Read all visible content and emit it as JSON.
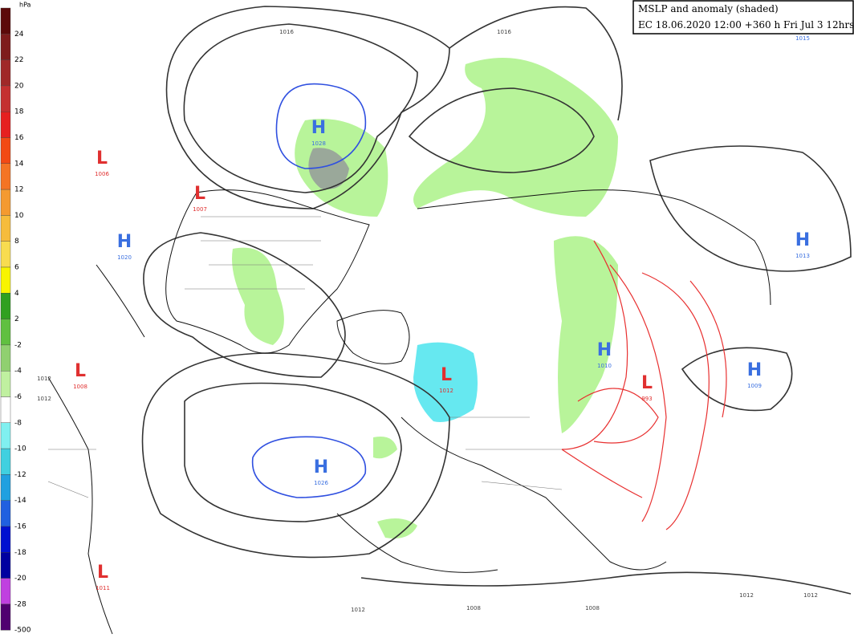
{
  "header": {
    "title": "MSLP and anomaly (shaded)",
    "run": "EC 18.06.2020 12:00 +360 h Fri Jul 3 12hrs"
  },
  "legend": {
    "unit": "hPa",
    "labels": [
      "24",
      "22",
      "20",
      "18",
      "16",
      "14",
      "12",
      "10",
      "8",
      "6",
      "4",
      "2",
      "-2",
      "-4",
      "-6",
      "-8",
      "-10",
      "-12",
      "-14",
      "-16",
      "-18",
      "-20",
      "-28",
      "-500"
    ],
    "colors": [
      "#5c0a0a",
      "#7e1c1c",
      "#a02828",
      "#c43030",
      "#e62020",
      "#f24a14",
      "#f47424",
      "#f49a30",
      "#f6bc3c",
      "#f8dc50",
      "#f8f400",
      "#30a020",
      "#60c040",
      "#90d070",
      "#c0f0a0",
      "#ffffff",
      "#80f0f0",
      "#40d0e0",
      "#20a0e0",
      "#2060e0",
      "#0010d0",
      "#0000a0",
      "#c040e0",
      "#500070"
    ]
  },
  "centers": [
    {
      "type": "H",
      "value": "1028"
    },
    {
      "type": "L",
      "value": "1006"
    },
    {
      "type": "L",
      "value": "1007"
    },
    {
      "type": "H",
      "value": "1020"
    },
    {
      "type": "H",
      "value": "1013"
    },
    {
      "type": "L",
      "value": "1012"
    },
    {
      "type": "H",
      "value": "1010"
    },
    {
      "type": "L",
      "value": "993"
    },
    {
      "type": "H",
      "value": "1009"
    },
    {
      "type": "L",
      "value": "1008"
    },
    {
      "type": "H",
      "value": "1026"
    },
    {
      "type": "L",
      "value": "1011"
    }
  ],
  "isobar_labels": [
    "1016",
    "1016",
    "1015",
    "1012",
    "1012",
    "1012",
    "1008",
    "1008",
    "1012",
    "1012"
  ]
}
